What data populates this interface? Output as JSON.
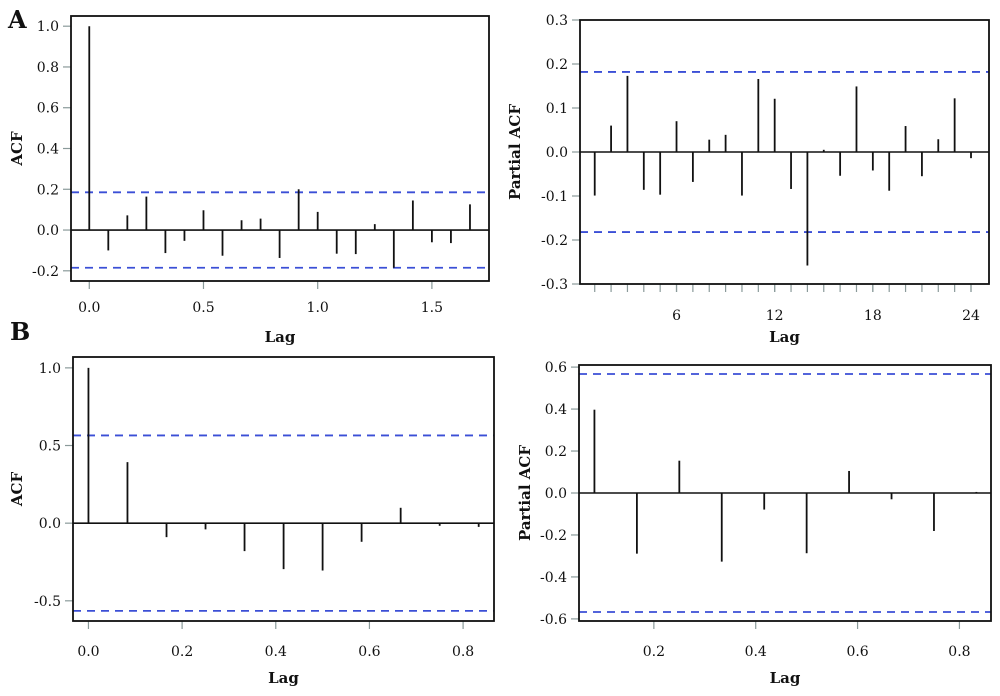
{
  "figure": {
    "panel_labels": [
      "A",
      "B"
    ]
  },
  "chart_data": [
    {
      "id": "A-left",
      "type": "bar",
      "subtype": "stem",
      "panel": "A",
      "title": "",
      "xlabel": "Lag",
      "ylabel": "ACF",
      "xlim": [
        -0.08,
        1.75
      ],
      "ylim": [
        -0.25,
        1.05
      ],
      "xticks": [
        0.0,
        0.5,
        1.0,
        1.5
      ],
      "xtick_labels": [
        "0.0",
        "0.5",
        "1.0",
        "1.5"
      ],
      "yticks": [
        -0.2,
        0.0,
        0.2,
        0.4,
        0.6,
        0.8,
        1.0
      ],
      "ytick_labels": [
        "-0.2",
        "0.0",
        "0.2",
        "0.4",
        "0.6",
        "0.8",
        "1.0"
      ],
      "confidence_band": 0.185,
      "band_color": "#3b4fd6",
      "x": [
        0.0,
        0.0833,
        0.1667,
        0.25,
        0.3333,
        0.4167,
        0.5,
        0.5833,
        0.6667,
        0.75,
        0.8333,
        0.9167,
        1.0,
        1.0833,
        1.1667,
        1.25,
        1.3333,
        1.4167,
        1.5,
        1.5833,
        1.6667
      ],
      "values": [
        1.0,
        -0.1,
        0.072,
        0.164,
        -0.113,
        -0.053,
        0.097,
        -0.126,
        0.048,
        0.056,
        -0.137,
        0.2,
        0.089,
        -0.116,
        -0.118,
        0.029,
        -0.185,
        0.145,
        -0.06,
        -0.064,
        0.126
      ]
    },
    {
      "id": "A-right",
      "type": "bar",
      "subtype": "stem",
      "panel": "A",
      "title": "",
      "xlabel": "Lag",
      "ylabel": "Partial ACF",
      "xlim": [
        0.1,
        25.1
      ],
      "ylim": [
        -0.3,
        0.3
      ],
      "xticks": [
        6,
        12,
        18,
        24
      ],
      "xtick_labels": [
        "6",
        "12",
        "18",
        "24"
      ],
      "minor_xticks": [
        1,
        2,
        3,
        4,
        5,
        6,
        7,
        8,
        9,
        10,
        11,
        12,
        13,
        14,
        15,
        16,
        17,
        18,
        19,
        20,
        21,
        22,
        23,
        24
      ],
      "yticks": [
        -0.3,
        -0.2,
        -0.1,
        0.0,
        0.1,
        0.2,
        0.3
      ],
      "ytick_labels": [
        "-0.3",
        "-0.2",
        "-0.1",
        "0.0",
        "0.1",
        "0.2",
        "0.3"
      ],
      "confidence_band": 0.182,
      "band_color": "#3b4fd6",
      "x": [
        1,
        2,
        3,
        4,
        5,
        6,
        7,
        8,
        9,
        10,
        11,
        12,
        13,
        14,
        15,
        16,
        17,
        18,
        19,
        20,
        21,
        22,
        23,
        24
      ],
      "values": [
        -0.099,
        0.06,
        0.173,
        -0.086,
        -0.097,
        0.07,
        -0.068,
        0.028,
        0.039,
        -0.099,
        0.166,
        0.121,
        -0.084,
        -0.258,
        0.005,
        -0.054,
        0.149,
        -0.042,
        -0.088,
        0.059,
        -0.055,
        0.029,
        0.122,
        -0.014
      ]
    },
    {
      "id": "B-left",
      "type": "bar",
      "subtype": "stem",
      "panel": "B",
      "title": "",
      "xlabel": "Lag",
      "ylabel": "ACF",
      "xlim": [
        -0.033,
        0.866
      ],
      "ylim": [
        -0.63,
        1.07
      ],
      "xticks": [
        0.0,
        0.2,
        0.4,
        0.6,
        0.8
      ],
      "xtick_labels": [
        "0.0",
        "0.2",
        "0.4",
        "0.6",
        "0.8"
      ],
      "yticks": [
        -0.5,
        0.0,
        0.5,
        1.0
      ],
      "ytick_labels": [
        "-0.5",
        "0.0",
        "0.5",
        "1.0"
      ],
      "confidence_band": 0.565,
      "band_color": "#3b4fd6",
      "x": [
        0.0,
        0.0833,
        0.1667,
        0.25,
        0.3333,
        0.4167,
        0.5,
        0.5833,
        0.6667,
        0.75,
        0.8333
      ],
      "values": [
        1.0,
        0.393,
        -0.09,
        -0.04,
        -0.18,
        -0.296,
        -0.305,
        -0.12,
        0.099,
        -0.017,
        -0.024
      ]
    },
    {
      "id": "B-right",
      "type": "bar",
      "subtype": "stem",
      "panel": "B",
      "title": "",
      "xlabel": "Lag",
      "ylabel": "Partial ACF",
      "xlim": [
        0.053,
        0.862
      ],
      "ylim": [
        -0.61,
        0.61
      ],
      "xticks": [
        0.2,
        0.4,
        0.6,
        0.8
      ],
      "xtick_labels": [
        "0.2",
        "0.4",
        "0.6",
        "0.8"
      ],
      "yticks": [
        -0.6,
        -0.4,
        -0.2,
        0.0,
        0.2,
        0.4,
        0.6
      ],
      "ytick_labels": [
        "-0.6",
        "-0.4",
        "-0.2",
        "0.0",
        "0.2",
        "0.4",
        "0.6"
      ],
      "confidence_band": 0.567,
      "band_color": "#3b4fd6",
      "x": [
        0.0833,
        0.1667,
        0.25,
        0.3333,
        0.4167,
        0.5,
        0.5833,
        0.6667,
        0.75,
        0.8333
      ],
      "values": [
        0.397,
        -0.289,
        0.154,
        -0.327,
        -0.079,
        -0.287,
        0.105,
        -0.03,
        -0.181,
        0.005
      ]
    }
  ]
}
